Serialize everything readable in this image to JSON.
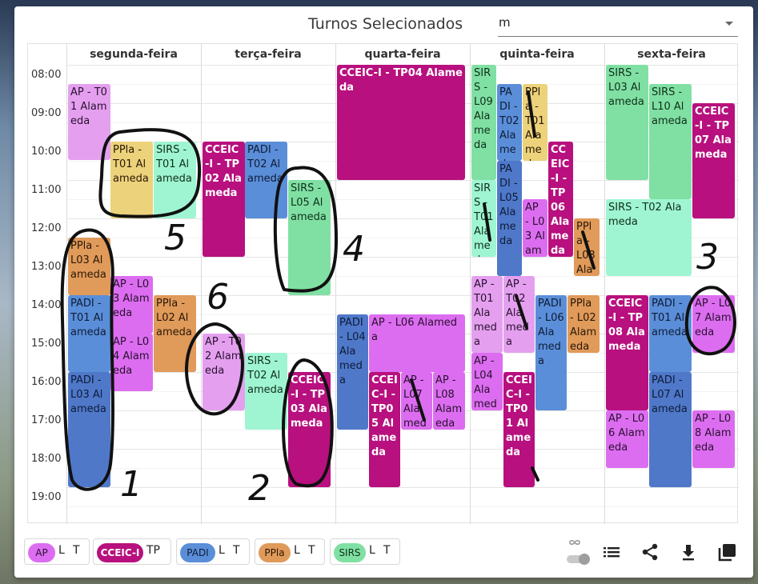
{
  "header": {
    "title": "Turnos Selecionados",
    "select_value": "m"
  },
  "days": [
    "segunda-feira",
    "terça-feira",
    "quarta-feira",
    "quinta-feira",
    "sexta-feira"
  ],
  "times": [
    "08:00",
    "09:00",
    "10:00",
    "11:00",
    "12:00",
    "13:00",
    "14:00",
    "15:00",
    "16:00",
    "17:00",
    "18:00",
    "19:00"
  ],
  "events": [
    {
      "text": "AP - T01 Alameda"
    },
    {
      "text": "PPla - T01 Alameda"
    },
    {
      "text": "SIRS - T01 Alameda"
    },
    {
      "text": "PPla - L03 Alameda"
    },
    {
      "text": "AP - L03 Alameda"
    },
    {
      "text": "PADI - T01 Alameda"
    },
    {
      "text": "PPla - L02 Alameda"
    },
    {
      "text": "AP - L04 Alameda"
    },
    {
      "text": "PADI - L03 Alameda"
    },
    {
      "text": "CCEIC-I - TP02 Alameda"
    },
    {
      "text": "PADI - T02 Alameda"
    },
    {
      "text": "SIRS - L05 Alameda"
    },
    {
      "text": "AP - T02 Alameda"
    },
    {
      "text": "SIRS - T02 Alameda"
    },
    {
      "text": "CCEIC-I - TP03 Alameda"
    },
    {
      "text": "CCEIC-I - TP04 Alameda"
    },
    {
      "text": "PADI - L04 Alameda"
    },
    {
      "text": "AP - L06 Alameda"
    },
    {
      "text": "CCEIC-I - TP05 Alameda"
    },
    {
      "text": "AP - L07 Alameda"
    },
    {
      "text": "AP - L08 Alameda"
    },
    {
      "text": "SIRS - L09 Alameda"
    },
    {
      "text": "PADI - T02 Alameda"
    },
    {
      "text": "PPla - T01 Alameda"
    },
    {
      "text": "CCEIC-I - TP06 Alameda"
    },
    {
      "text": "PADI - L05 Alameda"
    },
    {
      "text": "SIRS - T01 Alameda"
    },
    {
      "text": "AP - L03 Alameda"
    },
    {
      "text": "PPla - L03 Alameda"
    },
    {
      "text": "AP - T01 Alameda"
    },
    {
      "text": "AP - T02 Alameda"
    },
    {
      "text": "PADI - L06 Alameda"
    },
    {
      "text": "PPla - L02 Alameda"
    },
    {
      "text": "AP - L04 Alameda"
    },
    {
      "text": "CCEIC-I - TP01 Alameda"
    },
    {
      "text": "SIRS - L03 Alameda"
    },
    {
      "text": "SIRS - L10 Alameda"
    },
    {
      "text": "CCEIC-I - TP07 Alameda"
    },
    {
      "text": "SIRS - T02 Alameda"
    },
    {
      "text": "CCEIC-I - TP08 Alameda"
    },
    {
      "text": "PADI - T01 Alameda"
    },
    {
      "text": "AP - L07 Alameda"
    },
    {
      "text": "PADI - L07 Alameda"
    },
    {
      "text": "AP - L06 Alameda"
    },
    {
      "text": "AP - L08 Alameda"
    }
  ],
  "handwriting": [
    "5",
    "4",
    "3",
    "6",
    "1",
    "2"
  ],
  "legend": [
    {
      "name": "AP",
      "types": [
        "L",
        "T"
      ]
    },
    {
      "name": "CCEIC-I",
      "types": [
        "TP"
      ]
    },
    {
      "name": "PADI",
      "types": [
        "L",
        "T"
      ]
    },
    {
      "name": "PPla",
      "types": [
        "L",
        "T"
      ]
    },
    {
      "name": "SIRS",
      "types": [
        "L",
        "T"
      ]
    }
  ],
  "colors": {
    "AP": "#dc6df0",
    "CCEIC-I": "#b8107e",
    "PADI": "#5b8ed8",
    "PPla": "#e09a5a",
    "SIRS": "#80e0a3"
  },
  "toolbar": {
    "icons": [
      "infinity-toggle-icon",
      "list-icon",
      "share-icon",
      "download-icon",
      "copy-icon"
    ]
  }
}
